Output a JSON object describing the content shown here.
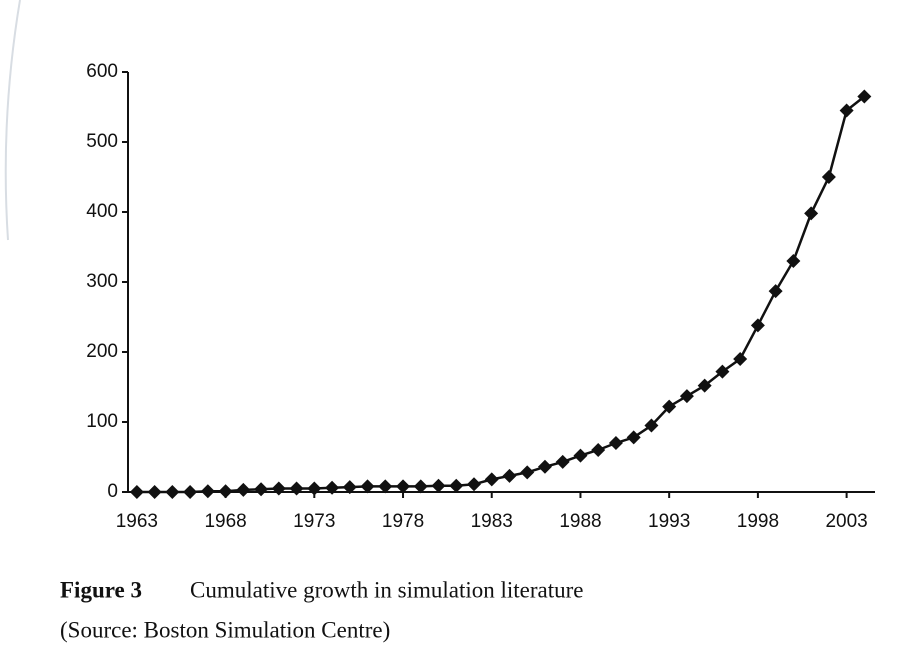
{
  "chart_data": {
    "type": "line",
    "x": [
      1963,
      1964,
      1965,
      1966,
      1967,
      1968,
      1969,
      1970,
      1971,
      1972,
      1973,
      1974,
      1975,
      1976,
      1977,
      1978,
      1979,
      1980,
      1981,
      1982,
      1983,
      1984,
      1985,
      1986,
      1987,
      1988,
      1989,
      1990,
      1991,
      1992,
      1993,
      1994,
      1995,
      1996,
      1997,
      1998,
      1999,
      2000,
      2001,
      2002,
      2003,
      2004
    ],
    "values": [
      0,
      0,
      0,
      0,
      1,
      1,
      3,
      4,
      5,
      5,
      5,
      6,
      7,
      8,
      8,
      8,
      8,
      9,
      9,
      11,
      18,
      23,
      28,
      36,
      43,
      52,
      60,
      70,
      78,
      95,
      122,
      137,
      152,
      172,
      190,
      238,
      287,
      330,
      398,
      450,
      545,
      565
    ],
    "color": "#111111",
    "xlim": [
      1962.5,
      2004.6
    ],
    "xticks": [
      1963,
      1968,
      1973,
      1978,
      1983,
      1988,
      1993,
      1998,
      2003
    ],
    "ylim": [
      0,
      600
    ],
    "yticks": [
      0,
      100,
      200,
      300,
      400,
      500,
      600
    ],
    "grid": false,
    "figure_label": "Figure 3",
    "caption": "Cumulative growth in simulation literature",
    "source": "(Source: Boston Simulation Centre)"
  }
}
